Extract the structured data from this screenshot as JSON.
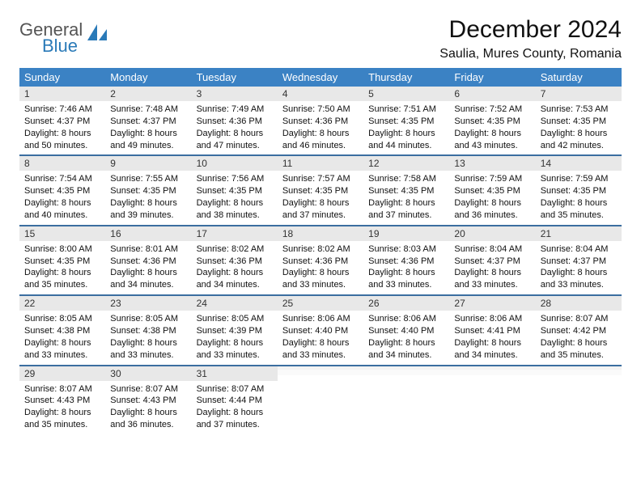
{
  "brand": {
    "line1": "General",
    "line2": "Blue"
  },
  "title": "December 2024",
  "location": "Saulia, Mures County, Romania",
  "colors": {
    "header_bg": "#3b82c4",
    "header_fg": "#ffffff",
    "week_divider": "#3b6ea0",
    "daynum_bg": "#e8e8e8",
    "logo_blue": "#2a7ab8",
    "logo_gray": "#555555",
    "page_bg": "#ffffff"
  },
  "typography": {
    "title_fontsize": 30,
    "location_fontsize": 16,
    "header_fontsize": 13,
    "daynum_fontsize": 12,
    "body_fontsize": 11
  },
  "day_labels": [
    "Sunday",
    "Monday",
    "Tuesday",
    "Wednesday",
    "Thursday",
    "Friday",
    "Saturday"
  ],
  "weeks": [
    [
      {
        "n": "1",
        "sr": "Sunrise: 7:46 AM",
        "ss": "Sunset: 4:37 PM",
        "dl": "Daylight: 8 hours and 50 minutes."
      },
      {
        "n": "2",
        "sr": "Sunrise: 7:48 AM",
        "ss": "Sunset: 4:37 PM",
        "dl": "Daylight: 8 hours and 49 minutes."
      },
      {
        "n": "3",
        "sr": "Sunrise: 7:49 AM",
        "ss": "Sunset: 4:36 PM",
        "dl": "Daylight: 8 hours and 47 minutes."
      },
      {
        "n": "4",
        "sr": "Sunrise: 7:50 AM",
        "ss": "Sunset: 4:36 PM",
        "dl": "Daylight: 8 hours and 46 minutes."
      },
      {
        "n": "5",
        "sr": "Sunrise: 7:51 AM",
        "ss": "Sunset: 4:35 PM",
        "dl": "Daylight: 8 hours and 44 minutes."
      },
      {
        "n": "6",
        "sr": "Sunrise: 7:52 AM",
        "ss": "Sunset: 4:35 PM",
        "dl": "Daylight: 8 hours and 43 minutes."
      },
      {
        "n": "7",
        "sr": "Sunrise: 7:53 AM",
        "ss": "Sunset: 4:35 PM",
        "dl": "Daylight: 8 hours and 42 minutes."
      }
    ],
    [
      {
        "n": "8",
        "sr": "Sunrise: 7:54 AM",
        "ss": "Sunset: 4:35 PM",
        "dl": "Daylight: 8 hours and 40 minutes."
      },
      {
        "n": "9",
        "sr": "Sunrise: 7:55 AM",
        "ss": "Sunset: 4:35 PM",
        "dl": "Daylight: 8 hours and 39 minutes."
      },
      {
        "n": "10",
        "sr": "Sunrise: 7:56 AM",
        "ss": "Sunset: 4:35 PM",
        "dl": "Daylight: 8 hours and 38 minutes."
      },
      {
        "n": "11",
        "sr": "Sunrise: 7:57 AM",
        "ss": "Sunset: 4:35 PM",
        "dl": "Daylight: 8 hours and 37 minutes."
      },
      {
        "n": "12",
        "sr": "Sunrise: 7:58 AM",
        "ss": "Sunset: 4:35 PM",
        "dl": "Daylight: 8 hours and 37 minutes."
      },
      {
        "n": "13",
        "sr": "Sunrise: 7:59 AM",
        "ss": "Sunset: 4:35 PM",
        "dl": "Daylight: 8 hours and 36 minutes."
      },
      {
        "n": "14",
        "sr": "Sunrise: 7:59 AM",
        "ss": "Sunset: 4:35 PM",
        "dl": "Daylight: 8 hours and 35 minutes."
      }
    ],
    [
      {
        "n": "15",
        "sr": "Sunrise: 8:00 AM",
        "ss": "Sunset: 4:35 PM",
        "dl": "Daylight: 8 hours and 35 minutes."
      },
      {
        "n": "16",
        "sr": "Sunrise: 8:01 AM",
        "ss": "Sunset: 4:36 PM",
        "dl": "Daylight: 8 hours and 34 minutes."
      },
      {
        "n": "17",
        "sr": "Sunrise: 8:02 AM",
        "ss": "Sunset: 4:36 PM",
        "dl": "Daylight: 8 hours and 34 minutes."
      },
      {
        "n": "18",
        "sr": "Sunrise: 8:02 AM",
        "ss": "Sunset: 4:36 PM",
        "dl": "Daylight: 8 hours and 33 minutes."
      },
      {
        "n": "19",
        "sr": "Sunrise: 8:03 AM",
        "ss": "Sunset: 4:36 PM",
        "dl": "Daylight: 8 hours and 33 minutes."
      },
      {
        "n": "20",
        "sr": "Sunrise: 8:04 AM",
        "ss": "Sunset: 4:37 PM",
        "dl": "Daylight: 8 hours and 33 minutes."
      },
      {
        "n": "21",
        "sr": "Sunrise: 8:04 AM",
        "ss": "Sunset: 4:37 PM",
        "dl": "Daylight: 8 hours and 33 minutes."
      }
    ],
    [
      {
        "n": "22",
        "sr": "Sunrise: 8:05 AM",
        "ss": "Sunset: 4:38 PM",
        "dl": "Daylight: 8 hours and 33 minutes."
      },
      {
        "n": "23",
        "sr": "Sunrise: 8:05 AM",
        "ss": "Sunset: 4:38 PM",
        "dl": "Daylight: 8 hours and 33 minutes."
      },
      {
        "n": "24",
        "sr": "Sunrise: 8:05 AM",
        "ss": "Sunset: 4:39 PM",
        "dl": "Daylight: 8 hours and 33 minutes."
      },
      {
        "n": "25",
        "sr": "Sunrise: 8:06 AM",
        "ss": "Sunset: 4:40 PM",
        "dl": "Daylight: 8 hours and 33 minutes."
      },
      {
        "n": "26",
        "sr": "Sunrise: 8:06 AM",
        "ss": "Sunset: 4:40 PM",
        "dl": "Daylight: 8 hours and 34 minutes."
      },
      {
        "n": "27",
        "sr": "Sunrise: 8:06 AM",
        "ss": "Sunset: 4:41 PM",
        "dl": "Daylight: 8 hours and 34 minutes."
      },
      {
        "n": "28",
        "sr": "Sunrise: 8:07 AM",
        "ss": "Sunset: 4:42 PM",
        "dl": "Daylight: 8 hours and 35 minutes."
      }
    ],
    [
      {
        "n": "29",
        "sr": "Sunrise: 8:07 AM",
        "ss": "Sunset: 4:43 PM",
        "dl": "Daylight: 8 hours and 35 minutes."
      },
      {
        "n": "30",
        "sr": "Sunrise: 8:07 AM",
        "ss": "Sunset: 4:43 PM",
        "dl": "Daylight: 8 hours and 36 minutes."
      },
      {
        "n": "31",
        "sr": "Sunrise: 8:07 AM",
        "ss": "Sunset: 4:44 PM",
        "dl": "Daylight: 8 hours and 37 minutes."
      },
      {
        "empty": true
      },
      {
        "empty": true
      },
      {
        "empty": true
      },
      {
        "empty": true
      }
    ]
  ]
}
